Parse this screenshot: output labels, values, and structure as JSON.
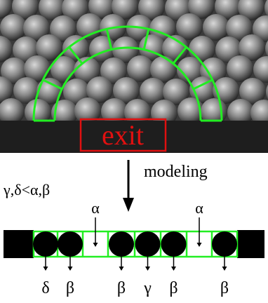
{
  "photo": {
    "exit_label": "exit"
  },
  "arrow_label": "modeling",
  "condition": "γ,δ<α,β",
  "gap_labels": [
    "α",
    "α"
  ],
  "particle_labels": [
    "δ",
    "β",
    "β",
    "γ",
    "β",
    "β"
  ]
}
